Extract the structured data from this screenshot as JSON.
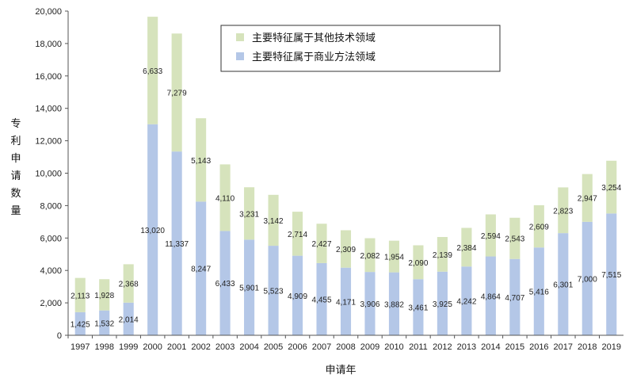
{
  "chart_data": {
    "type": "bar",
    "stacked": true,
    "categories": [
      "1997",
      "1998",
      "1999",
      "2000",
      "2001",
      "2002",
      "2003",
      "2004",
      "2005",
      "2006",
      "2007",
      "2008",
      "2009",
      "2010",
      "2011",
      "2012",
      "2013",
      "2014",
      "2015",
      "2016",
      "2017",
      "2018",
      "2019"
    ],
    "series": [
      {
        "name": "主要特征属于商业方法领域",
        "color": "#b4c7e7",
        "values": [
          1425,
          1532,
          2014,
          13020,
          11337,
          8247,
          6433,
          5901,
          5523,
          4909,
          4455,
          4171,
          3906,
          3882,
          3461,
          3925,
          4242,
          4864,
          4707,
          5416,
          6301,
          7000,
          7515
        ],
        "labels": [
          "1,425",
          "1,532",
          "2,014",
          "13,020",
          "11,337",
          "8,247",
          "6,433",
          "5,901",
          "5,523",
          "4,909",
          "4,455",
          "4,171",
          "3,906",
          "3,882",
          "3,461",
          "3,925",
          "4,242",
          "4,864",
          "4,707",
          "5,416",
          "6,301",
          "7,000",
          "7,515"
        ]
      },
      {
        "name": "主要特征属于其他技术领域",
        "color": "#d6e3bc",
        "values": [
          2113,
          1928,
          2368,
          6633,
          7279,
          5143,
          4110,
          3231,
          3142,
          2714,
          2427,
          2309,
          2082,
          1954,
          2090,
          2139,
          2384,
          2594,
          2543,
          2609,
          2823,
          2947,
          3254
        ],
        "labels": [
          "2,113",
          "1,928",
          "2,368",
          "6,633",
          "7,279",
          "5,143",
          "4,110",
          "3,231",
          "3,142",
          "2,714",
          "2,427",
          "2,309",
          "2,082",
          "1,954",
          "2,090",
          "2,139",
          "2,384",
          "2,594",
          "2,543",
          "2,609",
          "2,823",
          "2,947",
          "3,254"
        ]
      }
    ],
    "xlabel": "申请年",
    "ylabel": "专利申请数量",
    "ylim": [
      0,
      20000
    ],
    "yticks": [
      0,
      2000,
      4000,
      6000,
      8000,
      10000,
      12000,
      14000,
      16000,
      18000,
      20000
    ],
    "ytick_labels": [
      "0",
      "2,000",
      "4,000",
      "6,000",
      "8,000",
      "10,000",
      "12,000",
      "14,000",
      "16,000",
      "18,000",
      "20,000"
    ],
    "legend_position": "top-center",
    "grid": false
  }
}
